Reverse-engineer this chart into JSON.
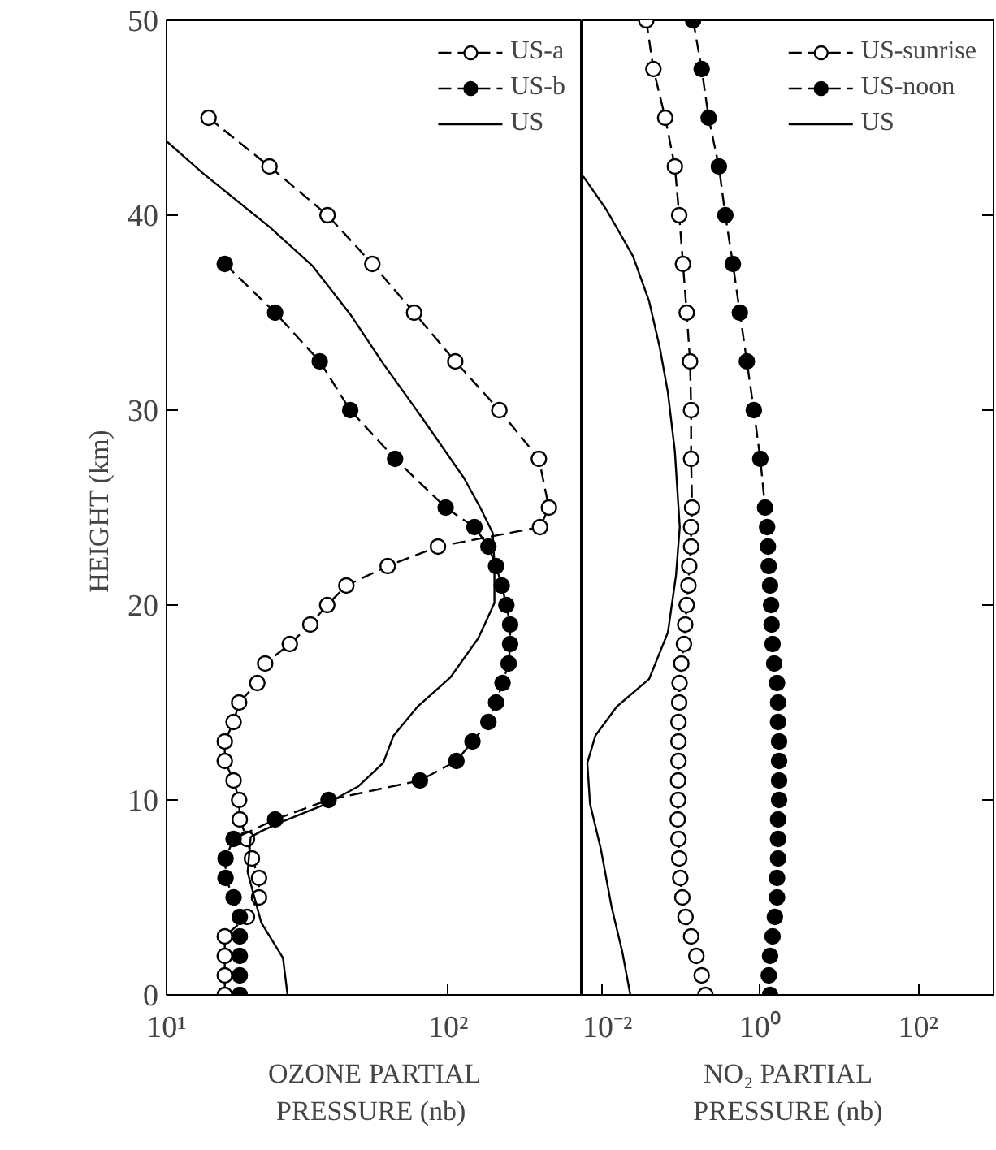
{
  "chart_data": [
    {
      "type": "line",
      "xlabel": "OZONE PARTIAL\nPRESSURE  (nb)",
      "ylabel": "HEIGHT  (km)",
      "log": "x",
      "xlim": [
        10,
        300
      ],
      "xticks": [
        {
          "value": 10,
          "label": "10¹"
        },
        {
          "value": 100,
          "label": "10²"
        }
      ],
      "ylim": [
        0,
        50
      ],
      "yticks": [
        0,
        10,
        20,
        30,
        40,
        50
      ],
      "legend": "top right",
      "grid": false,
      "series": [
        {
          "name": "US-a",
          "color": "#ffffff",
          "marker": "circle",
          "line_style": "dashed",
          "x": [
            14.1,
            23.2,
            37.3,
            53.8,
            75.7,
            106,
            152,
            210,
            228,
            212,
            92,
            61,
            43.5,
            37.2,
            32.4,
            27.4,
            22.4,
            21,
            18.1,
            17.3,
            16.1,
            16.1,
            17.3,
            18.1,
            18.2,
            19.3,
            20.1,
            21.3,
            21.3,
            19.3,
            16.1,
            16.1,
            16.1,
            16.1
          ],
          "values": [
            45,
            42.5,
            40,
            37.5,
            35,
            32.5,
            30,
            27.5,
            25,
            24,
            23,
            22,
            21,
            20,
            19,
            18,
            17,
            16,
            15,
            14,
            13,
            12,
            11,
            10,
            9,
            8,
            7,
            6,
            5,
            4,
            3,
            2,
            1,
            0
          ]
        },
        {
          "name": "US-b",
          "color": "#000000",
          "marker": "circle",
          "line_style": "dashed",
          "x": [
            16.1,
            24.3,
            35,
            44.9,
            64.8,
            98,
            124,
            139,
            148,
            155,
            161,
            166,
            166,
            164,
            156,
            148,
            139,
            122,
            107,
            79.4,
            37.6,
            24.3,
            17.3,
            16.2,
            16.2,
            17.3,
            18.2,
            18.2,
            18.2,
            18.2,
            18.2
          ],
          "values": [
            37.5,
            35,
            32.5,
            30,
            27.5,
            25,
            24,
            23,
            22,
            21,
            20,
            19,
            18,
            17,
            16,
            15,
            14,
            13,
            12,
            11,
            10,
            9,
            8,
            7,
            6,
            5,
            4,
            3,
            2,
            1,
            0
          ]
        },
        {
          "name": "US",
          "color": "#000000",
          "marker": "none",
          "line_style": "solid",
          "x": [
            10,
            13.6,
            23.2,
            33,
            45,
            58.7,
            80,
            114,
            130,
            144,
            146,
            146,
            128,
            102,
            78,
            64,
            58.8,
            48,
            36.9,
            25.9,
            21.7,
            19.9,
            19.4,
            21.7,
            25.9,
            26.9
          ],
          "values": [
            43.8,
            42.1,
            39.4,
            37.4,
            34.9,
            32.4,
            29.7,
            26.5,
            25,
            23.7,
            22.1,
            20.1,
            18.3,
            16.3,
            14.8,
            13.3,
            11.9,
            10.7,
            9.8,
            8.9,
            8.4,
            8.1,
            6.3,
            3.7,
            1.9,
            0
          ]
        }
      ]
    },
    {
      "type": "line",
      "xlabel": "NO₂ PARTIAL\nPRESSURE (nb)",
      "log": "x",
      "xlim": [
        0.0056,
        900
      ],
      "xticks": [
        {
          "value": 0.01,
          "label": "10⁻²"
        },
        {
          "value": 1,
          "label": "10⁰"
        },
        {
          "value": 100,
          "label": "10²"
        }
      ],
      "ylim": [
        0,
        50
      ],
      "yticks": [
        0,
        10,
        20,
        30,
        40,
        50
      ],
      "tick_labels": "x",
      "legend": "top right",
      "grid": false,
      "series": [
        {
          "name": "US-sunrise",
          "color": "#ffffff",
          "marker": "circle",
          "line_style": "dashed",
          "x": [
            0.036,
            0.0443,
            0.0625,
            0.0828,
            0.094,
            0.105,
            0.117,
            0.129,
            0.133,
            0.133,
            0.137,
            0.133,
            0.133,
            0.126,
            0.123,
            0.117,
            0.112,
            0.108,
            0.1,
            0.095,
            0.094,
            0.092,
            0.092,
            0.092,
            0.091,
            0.091,
            0.09,
            0.092,
            0.094,
            0.097,
            0.103,
            0.113,
            0.133,
            0.155,
            0.181,
            0.202
          ],
          "values": [
            50,
            47.5,
            45,
            42.5,
            40,
            37.5,
            35,
            32.5,
            30,
            27.5,
            25,
            24,
            23,
            22,
            21,
            20,
            19,
            18,
            17,
            16,
            15,
            14,
            13,
            12,
            11,
            10,
            9,
            8,
            7,
            6,
            5,
            4,
            3,
            2,
            1,
            0
          ]
        },
        {
          "name": "US-noon",
          "color": "#000000",
          "marker": "circle",
          "line_style": "dashed",
          "x": [
            0.141,
            0.181,
            0.222,
            0.299,
            0.361,
            0.45,
            0.551,
            0.676,
            0.828,
            1.0,
            1.15,
            1.22,
            1.25,
            1.28,
            1.33,
            1.37,
            1.39,
            1.43,
            1.5,
            1.63,
            1.68,
            1.68,
            1.73,
            1.73,
            1.73,
            1.73,
            1.68,
            1.68,
            1.68,
            1.63,
            1.63,
            1.53,
            1.43,
            1.33,
            1.28,
            1.33
          ],
          "values": [
            50,
            47.5,
            45,
            42.5,
            40,
            37.5,
            35,
            32.5,
            30,
            27.5,
            25,
            24,
            23,
            22,
            21,
            20,
            19,
            18,
            17,
            16,
            15,
            14,
            13,
            12,
            11,
            10,
            9,
            8,
            7,
            6,
            5,
            4,
            3,
            2,
            1,
            0
          ]
        },
        {
          "name": "US",
          "color": "#000000",
          "marker": "none",
          "line_style": "solid",
          "x": [
            0.0057,
            0.0112,
            0.0244,
            0.039,
            0.0534,
            0.0676,
            0.0828,
            0.0955,
            0.0855,
            0.0676,
            0.039,
            0.0153,
            0.00816,
            0.00645,
            0.00698,
            0.00955,
            0.0131,
            0.0179,
            0.0226
          ],
          "values": [
            42,
            40.3,
            37.9,
            35.6,
            33.2,
            30.9,
            27.9,
            24,
            21.5,
            18.6,
            16.2,
            14.8,
            13.3,
            11.9,
            9.8,
            7.5,
            4.5,
            2.2,
            0
          ]
        }
      ]
    }
  ]
}
